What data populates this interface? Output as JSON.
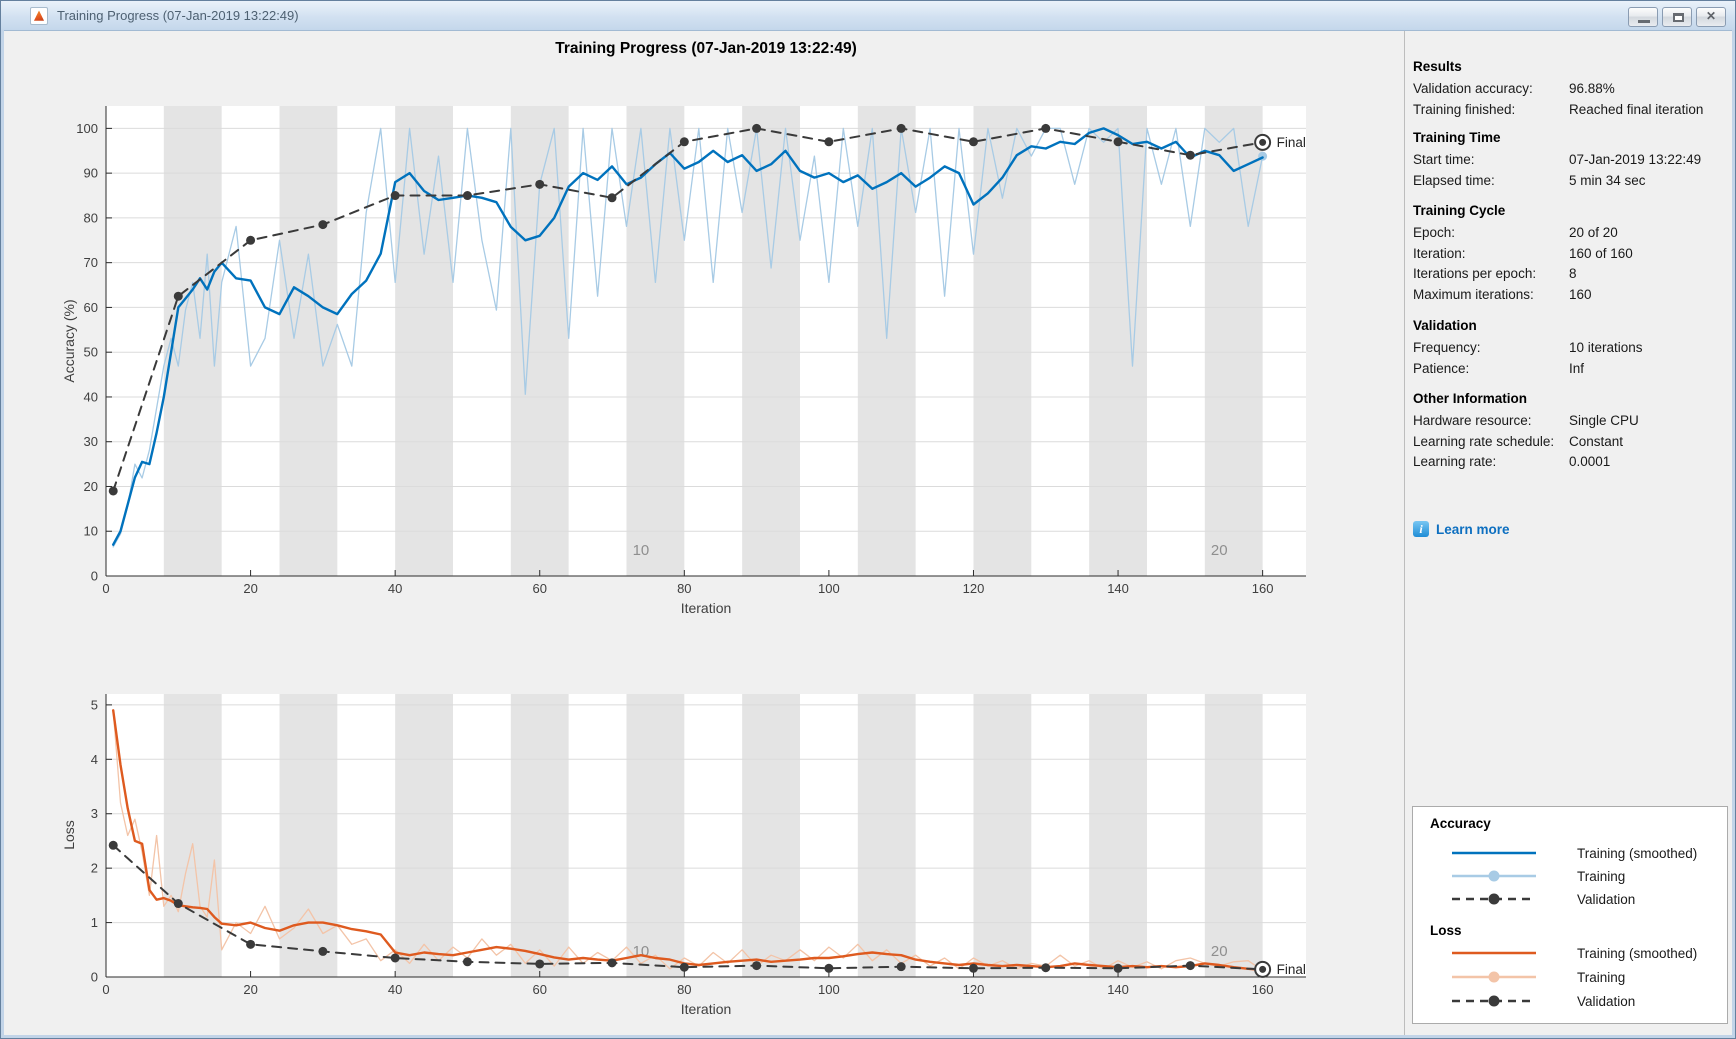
{
  "window": {
    "title": "Training Progress (07-Jan-2019 13:22:49)",
    "controls": {
      "minimize": "Minimize",
      "maximize": "Maximize",
      "close": "Close"
    }
  },
  "figure": {
    "title": "Training Progress (07-Jan-2019 13:22:49)"
  },
  "colors": {
    "figure_bg": "#F0F0F0",
    "plot_bg": "#FFFFFF",
    "epoch_band": "#E4E4E4",
    "gridline": "#DBDBDB",
    "axis": "#2B2B2B",
    "tick_label": "#3F3F3F",
    "epoch_label": "#8F8F8F",
    "accuracy_smoothed": "#0072BD",
    "accuracy_raw": "#A8CBE5",
    "loss_smoothed": "#DE5A1F",
    "loss_raw": "#F3C4A8",
    "validation": "#3A3A3A",
    "link": "#0D6FC0"
  },
  "chart_data": [
    {
      "id": "accuracy",
      "type": "line",
      "xlabel": "Iteration",
      "ylabel": "Accuracy (%)",
      "xlim": [
        0,
        166
      ],
      "ylim": [
        0,
        105
      ],
      "xticks": [
        0,
        20,
        40,
        60,
        80,
        100,
        120,
        140,
        160
      ],
      "yticks": [
        0,
        10,
        20,
        30,
        40,
        50,
        60,
        70,
        80,
        90,
        100
      ],
      "epoch_band_start": 8,
      "epoch_band_width": 8,
      "epoch_band_period": 16,
      "epoch_band_count": 10,
      "epoch_labels": [
        {
          "text": "10",
          "x": 74
        },
        {
          "text": "20",
          "x": 154
        }
      ],
      "final_label": "Final",
      "series": [
        {
          "name": "Training",
          "color": "#A8CBE5",
          "width": 1.3,
          "style": "solid",
          "end_dot": true,
          "x": [
            1,
            2,
            3,
            4,
            5,
            6,
            7,
            8,
            9,
            10,
            11,
            12,
            13,
            14,
            15,
            16,
            18,
            20,
            22,
            24,
            26,
            28,
            30,
            32,
            34,
            36,
            38,
            40,
            42,
            44,
            46,
            48,
            50,
            52,
            54,
            56,
            58,
            60,
            62,
            64,
            66,
            68,
            70,
            72,
            74,
            76,
            78,
            80,
            82,
            84,
            86,
            88,
            90,
            92,
            94,
            96,
            98,
            100,
            102,
            104,
            106,
            108,
            110,
            112,
            114,
            116,
            118,
            120,
            122,
            124,
            126,
            128,
            130,
            132,
            134,
            136,
            138,
            140,
            142,
            144,
            146,
            148,
            150,
            152,
            154,
            156,
            158,
            160
          ],
          "y": [
            6.5,
            9.4,
            15.6,
            25,
            21.9,
            28.1,
            37.5,
            46.9,
            53.1,
            46.9,
            59.4,
            65.6,
            53.1,
            71.9,
            46.9,
            65.6,
            78.1,
            46.9,
            53.1,
            75,
            53.1,
            71.9,
            46.9,
            56.2,
            46.9,
            81.2,
            100,
            65.6,
            100,
            71.9,
            93.8,
            65.6,
            100,
            75,
            59.4,
            100,
            40.6,
            87.5,
            100,
            53.1,
            100,
            62.5,
            100,
            78.1,
            100,
            65.6,
            100,
            75,
            100,
            65.6,
            100,
            81.2,
            100,
            68.8,
            100,
            75,
            93.8,
            65.6,
            100,
            78.1,
            100,
            53.1,
            100,
            81.2,
            100,
            62.5,
            100,
            71.9,
            100,
            84.4,
            100,
            93.8,
            100,
            100,
            87.5,
            100,
            96.9,
            100,
            46.9,
            100,
            87.5,
            100,
            78.1,
            100,
            96.9,
            100,
            78.1,
            93.8
          ]
        },
        {
          "name": "Training (smoothed)",
          "color": "#0072BD",
          "width": 2.4,
          "style": "solid",
          "x": [
            1,
            2,
            3,
            4,
            5,
            6,
            7,
            8,
            9,
            10,
            11,
            12,
            13,
            14,
            15,
            16,
            18,
            20,
            22,
            24,
            26,
            28,
            30,
            32,
            34,
            36,
            38,
            40,
            42,
            44,
            46,
            48,
            50,
            52,
            54,
            56,
            58,
            60,
            62,
            64,
            66,
            68,
            70,
            72,
            74,
            76,
            78,
            80,
            82,
            84,
            86,
            88,
            90,
            92,
            94,
            96,
            98,
            100,
            102,
            104,
            106,
            108,
            110,
            112,
            114,
            116,
            118,
            120,
            122,
            124,
            126,
            128,
            130,
            132,
            134,
            136,
            138,
            140,
            142,
            144,
            146,
            148,
            150,
            152,
            154,
            156,
            158,
            160
          ],
          "y": [
            7,
            10,
            16,
            22,
            25.5,
            25,
            32,
            40,
            50,
            60,
            62,
            64,
            66.5,
            64,
            68,
            70,
            66.5,
            66,
            60,
            58.5,
            64.5,
            62.5,
            60,
            58.5,
            63,
            66,
            72,
            88,
            90,
            86,
            84,
            84.5,
            85,
            84.5,
            83.5,
            78,
            75,
            76,
            80,
            87,
            90,
            88.5,
            91.5,
            87.5,
            89,
            92,
            94.5,
            91,
            92.5,
            95,
            92.5,
            94,
            90.5,
            92,
            95,
            90.5,
            89,
            90,
            88,
            89.5,
            86.5,
            88,
            90,
            87,
            89,
            91.5,
            90,
            83,
            85.5,
            89,
            94,
            96,
            95.5,
            97,
            96.5,
            99,
            100,
            98.5,
            96.5,
            97,
            95.5,
            97,
            93.5,
            95,
            94,
            90.5,
            92,
            93.5
          ]
        },
        {
          "name": "Validation",
          "color": "#3A3A3A",
          "width": 2,
          "style": "dashed",
          "markers": true,
          "x": [
            1,
            10,
            20,
            30,
            40,
            50,
            60,
            70,
            80,
            90,
            100,
            110,
            120,
            130,
            140,
            150,
            160
          ],
          "y": [
            19,
            62.5,
            75,
            78.5,
            85,
            85,
            87.5,
            84.5,
            97,
            100,
            97,
            100,
            97,
            100,
            97,
            94,
            96.88
          ]
        }
      ]
    },
    {
      "id": "loss",
      "type": "line",
      "xlabel": "Iteration",
      "ylabel": "Loss",
      "xlim": [
        0,
        166
      ],
      "ylim": [
        0,
        5.2
      ],
      "xticks": [
        0,
        20,
        40,
        60,
        80,
        100,
        120,
        140,
        160
      ],
      "yticks": [
        0,
        1,
        2,
        3,
        4,
        5
      ],
      "epoch_band_start": 8,
      "epoch_band_width": 8,
      "epoch_band_period": 16,
      "epoch_band_count": 10,
      "epoch_labels": [
        {
          "text": "10",
          "x": 74
        },
        {
          "text": "20",
          "x": 154
        }
      ],
      "final_label": "Final",
      "series": [
        {
          "name": "Training",
          "color": "#F3C4A8",
          "width": 1.3,
          "style": "solid",
          "end_dot": true,
          "x": [
            1,
            2,
            3,
            4,
            5,
            6,
            7,
            8,
            9,
            10,
            11,
            12,
            13,
            14,
            15,
            16,
            18,
            20,
            22,
            24,
            26,
            28,
            30,
            32,
            34,
            36,
            38,
            40,
            42,
            44,
            46,
            48,
            50,
            52,
            54,
            56,
            58,
            60,
            62,
            64,
            66,
            68,
            70,
            72,
            74,
            76,
            78,
            80,
            82,
            84,
            86,
            88,
            90,
            92,
            94,
            96,
            98,
            100,
            102,
            104,
            106,
            108,
            110,
            112,
            114,
            116,
            118,
            120,
            122,
            124,
            126,
            128,
            130,
            132,
            134,
            136,
            138,
            140,
            142,
            144,
            146,
            148,
            150,
            152,
            154,
            156,
            158,
            160
          ],
          "y": [
            4.9,
            3.2,
            2.6,
            2.9,
            2.3,
            1.5,
            2.6,
            1.3,
            1.5,
            1.2,
            1.9,
            2.45,
            1.3,
            1.1,
            2.15,
            0.5,
            1.0,
            0.8,
            1.3,
            0.7,
            0.9,
            1.25,
            0.8,
            0.95,
            0.6,
            0.7,
            0.3,
            0.5,
            0.25,
            0.6,
            0.3,
            0.55,
            0.35,
            0.7,
            0.4,
            0.6,
            0.25,
            0.5,
            0.2,
            0.55,
            0.25,
            0.45,
            0.3,
            0.55,
            0.25,
            0.4,
            0.15,
            0.35,
            0.2,
            0.45,
            0.25,
            0.5,
            0.2,
            0.4,
            0.3,
            0.5,
            0.3,
            0.55,
            0.35,
            0.6,
            0.3,
            0.5,
            0.25,
            0.4,
            0.2,
            0.35,
            0.15,
            0.35,
            0.2,
            0.3,
            0.15,
            0.25,
            0.2,
            0.4,
            0.2,
            0.3,
            0.15,
            0.3,
            0.18,
            0.28,
            0.15,
            0.3,
            0.35,
            0.25,
            0.2,
            0.28,
            0.3,
            0.12
          ]
        },
        {
          "name": "Training (smoothed)",
          "color": "#DE5A1F",
          "width": 2.4,
          "style": "solid",
          "x": [
            1,
            2,
            3,
            4,
            5,
            6,
            7,
            8,
            9,
            10,
            11,
            12,
            13,
            14,
            15,
            16,
            18,
            20,
            22,
            24,
            26,
            28,
            30,
            32,
            34,
            36,
            38,
            40,
            42,
            44,
            46,
            48,
            50,
            52,
            54,
            56,
            58,
            60,
            62,
            64,
            66,
            68,
            70,
            72,
            74,
            76,
            78,
            80,
            82,
            84,
            86,
            88,
            90,
            92,
            94,
            96,
            98,
            100,
            102,
            104,
            106,
            108,
            110,
            112,
            114,
            116,
            118,
            120,
            122,
            124,
            126,
            128,
            130,
            132,
            134,
            136,
            138,
            140,
            142,
            144,
            146,
            148,
            150,
            152,
            154,
            156,
            158,
            160
          ],
          "y": [
            4.9,
            3.9,
            3.1,
            2.5,
            2.45,
            1.6,
            1.42,
            1.45,
            1.4,
            1.32,
            1.3,
            1.28,
            1.27,
            1.25,
            1.1,
            0.98,
            0.95,
            1.0,
            0.9,
            0.85,
            0.95,
            1.0,
            1.0,
            0.95,
            0.88,
            0.84,
            0.78,
            0.45,
            0.4,
            0.45,
            0.42,
            0.4,
            0.45,
            0.5,
            0.55,
            0.52,
            0.48,
            0.42,
            0.36,
            0.32,
            0.35,
            0.32,
            0.3,
            0.35,
            0.4,
            0.35,
            0.32,
            0.25,
            0.22,
            0.25,
            0.28,
            0.3,
            0.32,
            0.28,
            0.3,
            0.32,
            0.35,
            0.35,
            0.38,
            0.42,
            0.45,
            0.42,
            0.4,
            0.32,
            0.28,
            0.25,
            0.22,
            0.25,
            0.22,
            0.2,
            0.22,
            0.2,
            0.18,
            0.2,
            0.25,
            0.22,
            0.2,
            0.18,
            0.2,
            0.18,
            0.2,
            0.18,
            0.2,
            0.25,
            0.22,
            0.18,
            0.15,
            0.13
          ]
        },
        {
          "name": "Validation",
          "color": "#3A3A3A",
          "width": 2,
          "style": "dashed",
          "markers": true,
          "x": [
            1,
            10,
            20,
            30,
            40,
            50,
            60,
            70,
            80,
            90,
            100,
            110,
            120,
            130,
            140,
            150,
            160
          ],
          "y": [
            2.42,
            1.35,
            0.6,
            0.47,
            0.35,
            0.28,
            0.24,
            0.26,
            0.18,
            0.21,
            0.16,
            0.19,
            0.16,
            0.17,
            0.16,
            0.21,
            0.14
          ]
        }
      ]
    }
  ],
  "sidebar": {
    "sections": [
      {
        "heading": "Results",
        "rows": [
          [
            "Validation accuracy:",
            "96.88%"
          ],
          [
            "Training finished:",
            "Reached final iteration"
          ]
        ]
      },
      {
        "heading": "Training Time",
        "rows": [
          [
            "Start time:",
            "07-Jan-2019 13:22:49"
          ],
          [
            "Elapsed time:",
            "5 min 34 sec"
          ]
        ]
      },
      {
        "heading": "Training Cycle",
        "rows": [
          [
            "Epoch:",
            "20 of 20"
          ],
          [
            "Iteration:",
            "160 of 160"
          ],
          [
            "Iterations per epoch:",
            "8"
          ],
          [
            "Maximum iterations:",
            "160"
          ]
        ]
      },
      {
        "heading": "Validation",
        "rows": [
          [
            "Frequency:",
            "10 iterations"
          ],
          [
            "Patience:",
            "Inf"
          ]
        ]
      },
      {
        "heading": "Other Information",
        "rows": [
          [
            "Hardware resource:",
            "Single CPU"
          ],
          [
            "Learning rate schedule:",
            "Constant"
          ],
          [
            "Learning rate:",
            "0.0001"
          ]
        ]
      }
    ],
    "learn_more": {
      "icon": "i",
      "label": "Learn more"
    }
  },
  "legend": {
    "groups": [
      {
        "title": "Accuracy",
        "items": [
          {
            "label": "Training (smoothed)",
            "swatch": "solid",
            "color": "#0072BD"
          },
          {
            "label": "Training",
            "swatch": "raw",
            "color": "#A8CBE5"
          },
          {
            "label": "Validation",
            "swatch": "dashed",
            "color": "#3A3A3A"
          }
        ]
      },
      {
        "title": "Loss",
        "items": [
          {
            "label": "Training (smoothed)",
            "swatch": "solid",
            "color": "#DE5A1F"
          },
          {
            "label": "Training",
            "swatch": "raw",
            "color": "#F3C4A8"
          },
          {
            "label": "Validation",
            "swatch": "dashed",
            "color": "#3A3A3A"
          }
        ]
      }
    ]
  }
}
